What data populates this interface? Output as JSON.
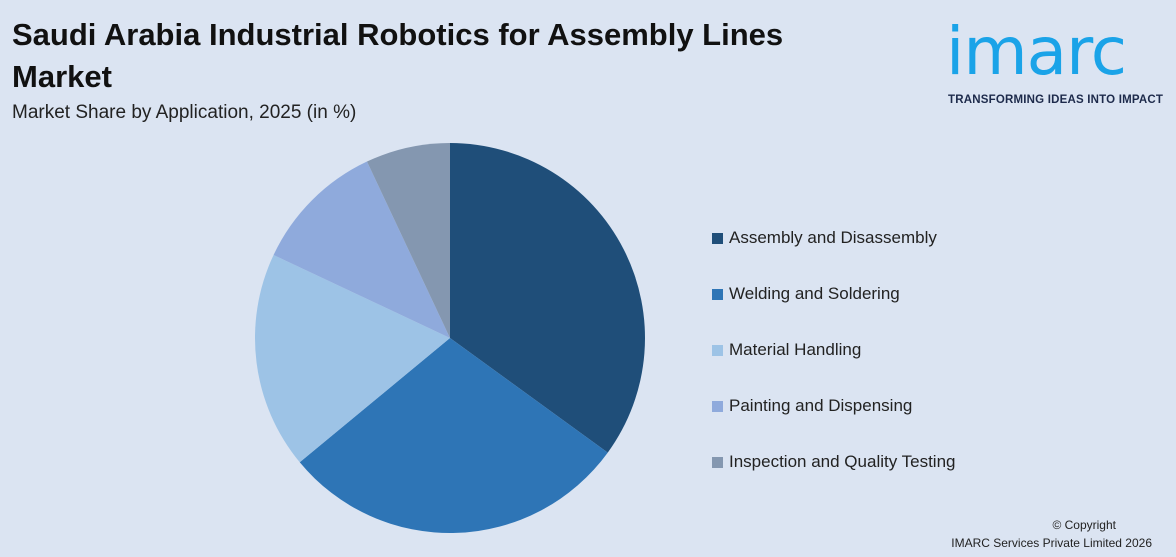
{
  "header": {
    "title": "Saudi Arabia Industrial Robotics for Assembly Lines Market",
    "subtitle": "Market Share by Application, 2025 (in %)"
  },
  "logo": {
    "wordmark": "imarc",
    "tagline": "TRANSFORMING IDEAS INTO IMPACT",
    "color": "#1aa3e8"
  },
  "footer": {
    "copyright_line1": "© Copyright",
    "copyright_line2": "IMARC Services Private Limited 2026"
  },
  "chart_data": {
    "type": "pie",
    "title": "Saudi Arabia Industrial Robotics for Assembly Lines Market",
    "subtitle": "Market Share by Application, 2025 (in %)",
    "categories": [
      "Assembly and Disassembly",
      "Welding and Soldering",
      "Material Handling",
      "Painting and Dispensing",
      "Inspection and Quality Testing"
    ],
    "values": [
      35,
      29,
      18,
      11,
      7
    ],
    "colors": [
      "#1f4e79",
      "#2e75b6",
      "#9dc3e6",
      "#8faadc",
      "#8497b0"
    ],
    "legend_position": "right",
    "start_angle": "12 o'clock",
    "direction": "clockwise"
  }
}
